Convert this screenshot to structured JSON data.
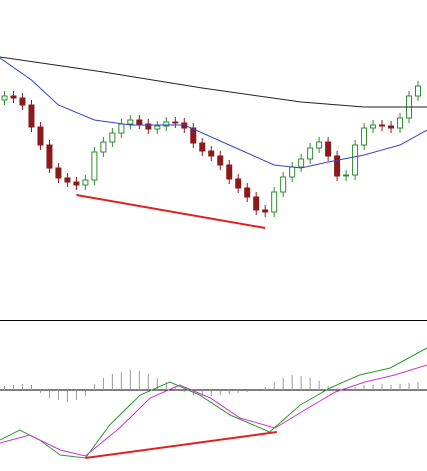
{
  "chart_data": [
    {
      "type": "candlestick",
      "xlim": [
        -0.5,
        47
      ],
      "ylim": [
        0,
        320
      ],
      "up_color": "#2e8b2e",
      "down_color": "#8b1a1a",
      "open": [
        220,
        224,
        222,
        215,
        193,
        175,
        152,
        142,
        138,
        135,
        140,
        168,
        178,
        187,
        196,
        200,
        196,
        191,
        194,
        198,
        197,
        192,
        177,
        169,
        164,
        155,
        141,
        132,
        123,
        110,
        108,
        128,
        143,
        153,
        161,
        172,
        178,
        164,
        144,
        145,
        175,
        192,
        195,
        194,
        192,
        202,
        224
      ],
      "high": [
        229,
        229,
        227,
        220,
        198,
        180,
        157,
        147,
        143,
        145,
        173,
        183,
        192,
        201,
        205,
        205,
        201,
        199,
        203,
        203,
        202,
        197,
        182,
        174,
        169,
        160,
        146,
        137,
        128,
        115,
        133,
        148,
        158,
        166,
        177,
        183,
        183,
        169,
        150,
        180,
        197,
        200,
        200,
        199,
        207,
        229,
        239
      ],
      "low": [
        215,
        217,
        210,
        188,
        170,
        147,
        137,
        133,
        130,
        130,
        135,
        163,
        173,
        182,
        191,
        191,
        186,
        186,
        189,
        192,
        187,
        172,
        164,
        159,
        150,
        136,
        127,
        118,
        105,
        103,
        103,
        123,
        138,
        148,
        156,
        167,
        159,
        139,
        139,
        140,
        170,
        187,
        189,
        187,
        187,
        197,
        219
      ],
      "close": [
        224,
        222,
        215,
        193,
        175,
        152,
        142,
        138,
        135,
        140,
        168,
        178,
        187,
        196,
        200,
        196,
        191,
        194,
        198,
        197,
        192,
        177,
        169,
        164,
        155,
        141,
        132,
        123,
        110,
        108,
        128,
        143,
        153,
        161,
        172,
        178,
        164,
        144,
        145,
        175,
        192,
        195,
        194,
        192,
        202,
        224,
        234
      ],
      "series": [
        {
          "color": "#222222",
          "x": [
            -0.5,
            11,
            22,
            33,
            40,
            47
          ],
          "values": [
            263,
            248,
            232,
            218,
            213,
            213
          ]
        },
        {
          "color": "#3344cc",
          "x": [
            -0.5,
            3,
            6,
            10,
            14,
            20,
            25,
            30,
            33,
            36,
            40,
            44,
            47
          ],
          "values": [
            262,
            240,
            215,
            200,
            195,
            195,
            175,
            155,
            152,
            158,
            165,
            175,
            190
          ]
        },
        {
          "color": "#e02020",
          "x": [
            8,
            29
          ],
          "values": [
            125,
            92
          ]
        }
      ]
    },
    {
      "type": "macd",
      "xlim": [
        -0.5,
        47
      ],
      "ylim": [
        -81,
        70
      ],
      "hist_color": "#999999",
      "histogram": [
        4,
        5,
        6,
        5,
        -3,
        -8,
        -10,
        -12,
        -10,
        -6,
        6,
        12,
        16,
        18,
        20,
        19,
        16,
        12,
        8,
        3,
        -2,
        -5,
        -6,
        -6,
        -5,
        -4,
        -3,
        -2,
        -1,
        3,
        8,
        12,
        15,
        14,
        12,
        9,
        4,
        2,
        1,
        3,
        5,
        5,
        6,
        5,
        6,
        7,
        8
      ],
      "series": [
        {
          "color": "#2a9a2a",
          "x": [
            -0.5,
            1.7,
            3.9,
            6.2,
            9,
            11.7,
            15.1,
            18.4,
            21.7,
            25.1,
            29.5,
            32.9,
            36.2,
            39.5,
            42.9,
            47
          ],
          "values": [
            -50,
            -40,
            -50,
            -65,
            -68,
            -35,
            -5,
            8,
            -5,
            -25,
            -42,
            -15,
            2,
            15,
            22,
            42
          ]
        },
        {
          "color": "#cc33cc",
          "x": [
            -0.5,
            2.8,
            6.2,
            9,
            12.8,
            16.2,
            19.5,
            22.9,
            26.2,
            30.1,
            33.4,
            36.8,
            40.1,
            43.4,
            47
          ],
          "values": [
            -53,
            -45,
            -60,
            -66,
            -38,
            -8,
            5,
            -8,
            -28,
            -38,
            -20,
            -2,
            8,
            15,
            25
          ]
        },
        {
          "color": "#e02020",
          "x": [
            9,
            30.3
          ],
          "values": [
            -68,
            -42
          ]
        }
      ]
    }
  ]
}
